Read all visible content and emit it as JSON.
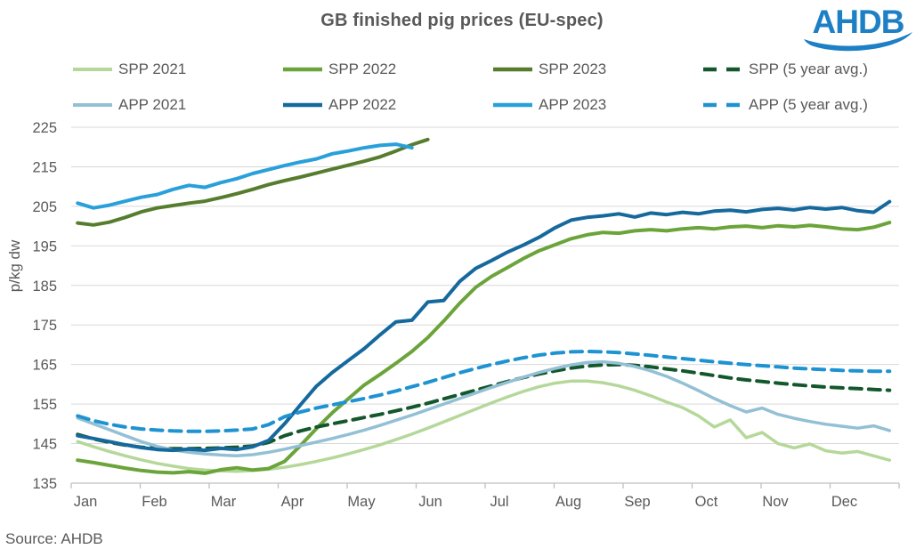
{
  "header": {
    "title": "GB finished pig prices (EU-spec)"
  },
  "logo": {
    "text": "AHDB",
    "color": "#1d7fc4"
  },
  "footer": {
    "source": "Source: AHDB"
  },
  "chart_data": {
    "type": "line",
    "title": "GB finished pig prices (EU-spec)",
    "xlabel": "",
    "ylabel": "p/kg dw",
    "ylim": [
      135,
      225
    ],
    "yticks": [
      135,
      145,
      155,
      165,
      175,
      185,
      195,
      205,
      215,
      225
    ],
    "months": [
      "Jan",
      "Feb",
      "Mar",
      "Apr",
      "May",
      "Jun",
      "Jul",
      "Aug",
      "Sep",
      "Oct",
      "Nov",
      "Dec"
    ],
    "weeks_per_year": 52,
    "grid": "horizontal",
    "grid_color": "#d9d9d9",
    "axis_color": "#bfbfbf",
    "text_color": "#595959",
    "legend_position": "top",
    "series": [
      {
        "name": "SPP 2021",
        "color": "#b5d89a",
        "dash": false,
        "width": 3.5,
        "start_week": 1,
        "values": [
          145.5,
          144.2,
          143.0,
          141.9,
          140.9,
          140.0,
          139.3,
          138.7,
          138.3,
          138.1,
          138.0,
          138.2,
          138.5,
          139.0,
          139.7,
          140.5,
          141.4,
          142.4,
          143.5,
          144.7,
          146.0,
          147.4,
          148.9,
          150.5,
          152.1,
          153.7,
          155.3,
          156.8,
          158.2,
          159.4,
          160.3,
          160.8,
          160.8,
          160.4,
          159.6,
          158.5,
          157.1,
          155.5,
          154.1,
          152.0,
          149.2,
          151.0,
          146.5,
          147.8,
          145.0,
          143.9,
          144.9,
          143.2,
          142.6,
          143.0,
          141.9,
          140.8
        ]
      },
      {
        "name": "SPP 2022",
        "color": "#6ba43a",
        "dash": false,
        "width": 4,
        "start_week": 1,
        "values": [
          140.8,
          140.2,
          139.5,
          138.8,
          138.2,
          137.8,
          137.6,
          137.9,
          137.5,
          138.4,
          138.9,
          138.3,
          138.7,
          140.5,
          144.5,
          148.8,
          152.8,
          156.3,
          159.8,
          162.5,
          165.3,
          168.3,
          171.8,
          176.0,
          180.5,
          184.5,
          187.3,
          189.5,
          191.8,
          193.8,
          195.3,
          196.8,
          197.8,
          198.4,
          198.2,
          198.8,
          199.1,
          198.8,
          199.3,
          199.6,
          199.3,
          199.8,
          200.0,
          199.6,
          200.1,
          199.8,
          200.2,
          199.8,
          199.3,
          199.1,
          199.7,
          200.9
        ]
      },
      {
        "name": "SPP 2023",
        "color": "#567d2e",
        "dash": false,
        "width": 4,
        "start_week": 1,
        "values": [
          200.8,
          200.3,
          201.0,
          202.2,
          203.6,
          204.6,
          205.2,
          205.8,
          206.3,
          207.2,
          208.2,
          209.3,
          210.5,
          211.5,
          212.4,
          213.4,
          214.4,
          215.4,
          216.4,
          217.5,
          219.0,
          220.6,
          221.9
        ]
      },
      {
        "name": "SPP (5 year avg.)",
        "color": "#13572d",
        "dash": true,
        "width": 4,
        "start_week": 1,
        "values": [
          147.3,
          146.2,
          145.3,
          144.6,
          144.1,
          143.8,
          143.7,
          143.7,
          143.8,
          143.9,
          144.1,
          144.4,
          145.3,
          147.0,
          148.2,
          149.2,
          150.0,
          150.8,
          151.6,
          152.4,
          153.3,
          154.2,
          155.2,
          156.3,
          157.4,
          158.5,
          159.6,
          160.7,
          161.7,
          162.6,
          163.4,
          164.1,
          164.6,
          164.9,
          165.0,
          164.8,
          164.4,
          163.9,
          163.4,
          162.8,
          162.2,
          161.6,
          161.1,
          160.7,
          160.3,
          159.9,
          159.6,
          159.3,
          159.1,
          158.9,
          158.7,
          158.5
        ]
      },
      {
        "name": "APP 2021",
        "color": "#93c0d4",
        "dash": false,
        "width": 3.5,
        "start_week": 1,
        "values": [
          151.5,
          150.0,
          148.5,
          147.0,
          145.5,
          144.3,
          143.4,
          142.8,
          142.4,
          142.1,
          141.9,
          142.2,
          142.8,
          143.6,
          144.5,
          145.4,
          146.3,
          147.3,
          148.4,
          149.6,
          150.9,
          152.2,
          153.6,
          155.0,
          156.4,
          157.8,
          159.2,
          160.5,
          161.8,
          163.0,
          164.0,
          164.9,
          165.5,
          165.7,
          165.3,
          164.5,
          163.4,
          162.0,
          160.3,
          158.4,
          156.4,
          154.6,
          153.0,
          154.0,
          152.4,
          151.4,
          150.6,
          149.9,
          149.4,
          148.9,
          149.5,
          148.3
        ]
      },
      {
        "name": "APP 2022",
        "color": "#16699d",
        "dash": false,
        "width": 4,
        "start_week": 1,
        "values": [
          147.0,
          146.3,
          145.5,
          144.7,
          144.0,
          143.5,
          143.3,
          143.6,
          143.3,
          143.8,
          143.5,
          144.2,
          145.8,
          150.0,
          154.8,
          159.5,
          163.0,
          166.0,
          169.0,
          172.5,
          175.8,
          176.2,
          180.8,
          181.2,
          186.0,
          189.3,
          191.3,
          193.4,
          195.2,
          197.2,
          199.6,
          201.5,
          202.2,
          202.6,
          203.1,
          202.3,
          203.3,
          202.9,
          203.5,
          203.1,
          203.8,
          204.0,
          203.6,
          204.2,
          204.5,
          204.1,
          204.7,
          204.3,
          204.7,
          203.9,
          203.5,
          206.2
        ]
      },
      {
        "name": "APP 2023",
        "color": "#29a0da",
        "dash": false,
        "width": 4,
        "start_week": 1,
        "values": [
          205.8,
          204.6,
          205.3,
          206.3,
          207.3,
          208.0,
          209.3,
          210.3,
          209.8,
          211.0,
          212.0,
          213.3,
          214.3,
          215.3,
          216.2,
          217.0,
          218.3,
          219.0,
          219.8,
          220.4,
          220.7,
          219.8
        ]
      },
      {
        "name": "APP (5 year avg.)",
        "color": "#1e93d2",
        "dash": true,
        "width": 4,
        "start_week": 1,
        "values": [
          152.0,
          150.8,
          149.9,
          149.2,
          148.7,
          148.4,
          148.2,
          148.1,
          148.1,
          148.2,
          148.4,
          148.7,
          149.8,
          151.8,
          153.0,
          154.0,
          154.8,
          155.6,
          156.4,
          157.3,
          158.3,
          159.4,
          160.5,
          161.7,
          162.9,
          164.0,
          165.0,
          165.9,
          166.7,
          167.4,
          167.9,
          168.2,
          168.3,
          168.2,
          168.0,
          167.7,
          167.3,
          166.9,
          166.5,
          166.1,
          165.7,
          165.3,
          165.0,
          164.7,
          164.4,
          164.1,
          163.9,
          163.7,
          163.5,
          163.4,
          163.3,
          163.3
        ]
      }
    ]
  }
}
